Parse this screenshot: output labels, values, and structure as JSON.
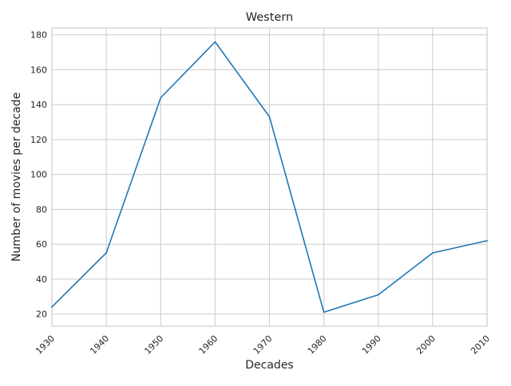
{
  "chart_data": {
    "type": "line",
    "title": "Western",
    "xlabel": "Decades",
    "ylabel": "Number of movies per decade",
    "x": [
      1930,
      1940,
      1950,
      1960,
      1970,
      1980,
      1990,
      2000,
      2010
    ],
    "series": [
      {
        "values": [
          24,
          55,
          144,
          176,
          133,
          21,
          31,
          55,
          62
        ]
      }
    ],
    "xlim": [
      1930,
      2010
    ],
    "ylim": [
      13,
      184
    ],
    "xticks": [
      "1930",
      "1940",
      "1950",
      "1960",
      "1970",
      "1980",
      "1990",
      "2000",
      "2010"
    ],
    "yticks": [
      20,
      40,
      60,
      80,
      100,
      120,
      140,
      160,
      180
    ],
    "ytick_labels": [
      "20",
      "40",
      "60",
      "80",
      "100",
      "120",
      "140",
      "160",
      "180"
    ],
    "grid": true,
    "line_color": "#1f77b4",
    "xtick_rotation_deg": -45
  }
}
